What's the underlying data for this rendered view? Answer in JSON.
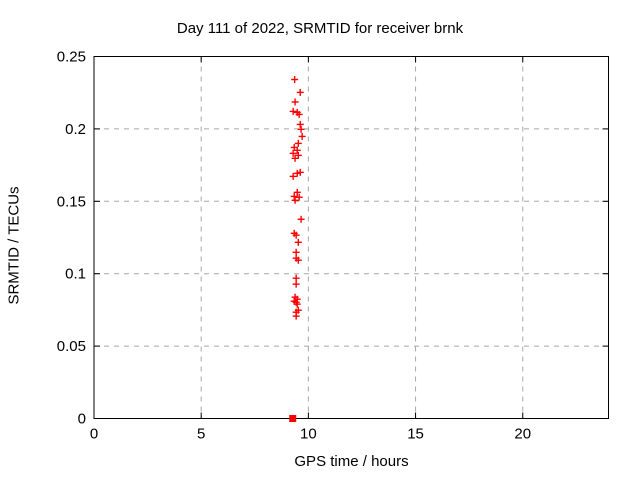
{
  "chart_data": {
    "type": "scatter",
    "title": "Day 111 of 2022, SRMTID for receiver brnk",
    "xlabel": "GPS time / hours",
    "ylabel": "SRMTID / TECUs",
    "xlim": [
      0,
      24
    ],
    "ylim": [
      0,
      0.25
    ],
    "xticks": [
      0,
      5,
      10,
      15,
      20
    ],
    "xtick_labels": [
      "0",
      "5",
      "10",
      "15",
      "20"
    ],
    "yticks": [
      0,
      0.05,
      0.1,
      0.15,
      0.2,
      0.25
    ],
    "ytick_labels": [
      "0",
      "0.05",
      "0.1",
      "0.15",
      "0.2",
      "0.25"
    ],
    "grid": true,
    "legend": "none",
    "colors": {
      "marker": "#ff0000",
      "grid": "#a8a8a8",
      "border": "#000000",
      "background": "#ffffff"
    },
    "series": [
      {
        "name": "SRMTID",
        "marker": "plus",
        "color": "#ff0000",
        "points": [
          [
            9.36,
            0.2341
          ],
          [
            9.62,
            0.2252
          ],
          [
            9.38,
            0.2186
          ],
          [
            9.29,
            0.2121
          ],
          [
            9.48,
            0.2114
          ],
          [
            9.57,
            0.21
          ],
          [
            9.62,
            0.2031
          ],
          [
            9.66,
            0.1997
          ],
          [
            9.71,
            0.1948
          ],
          [
            9.53,
            0.19
          ],
          [
            9.34,
            0.1872
          ],
          [
            9.48,
            0.1852
          ],
          [
            9.29,
            0.1831
          ],
          [
            9.53,
            0.1817
          ],
          [
            9.38,
            0.1797
          ],
          [
            9.62,
            0.17
          ],
          [
            9.48,
            0.1693
          ],
          [
            9.29,
            0.1672
          ],
          [
            9.48,
            0.1562
          ],
          [
            9.34,
            0.1534
          ],
          [
            9.57,
            0.1528
          ],
          [
            9.38,
            0.1507
          ],
          [
            9.66,
            0.1376
          ],
          [
            9.34,
            0.1279
          ],
          [
            9.43,
            0.1266
          ],
          [
            9.53,
            0.1217
          ],
          [
            9.43,
            0.1148
          ],
          [
            9.43,
            0.1107
          ],
          [
            9.53,
            0.1093
          ],
          [
            9.43,
            0.0969
          ],
          [
            9.43,
            0.0928
          ],
          [
            9.38,
            0.0838
          ],
          [
            9.48,
            0.0824
          ],
          [
            9.34,
            0.081
          ],
          [
            9.43,
            0.0803
          ],
          [
            9.48,
            0.079
          ],
          [
            9.53,
            0.0748
          ],
          [
            9.43,
            0.0734
          ],
          [
            9.43,
            0.0707
          ]
        ]
      }
    ],
    "zero_marker": {
      "x": 9.27,
      "y": 0,
      "shape": "filled-square",
      "color": "#ff0000"
    }
  }
}
